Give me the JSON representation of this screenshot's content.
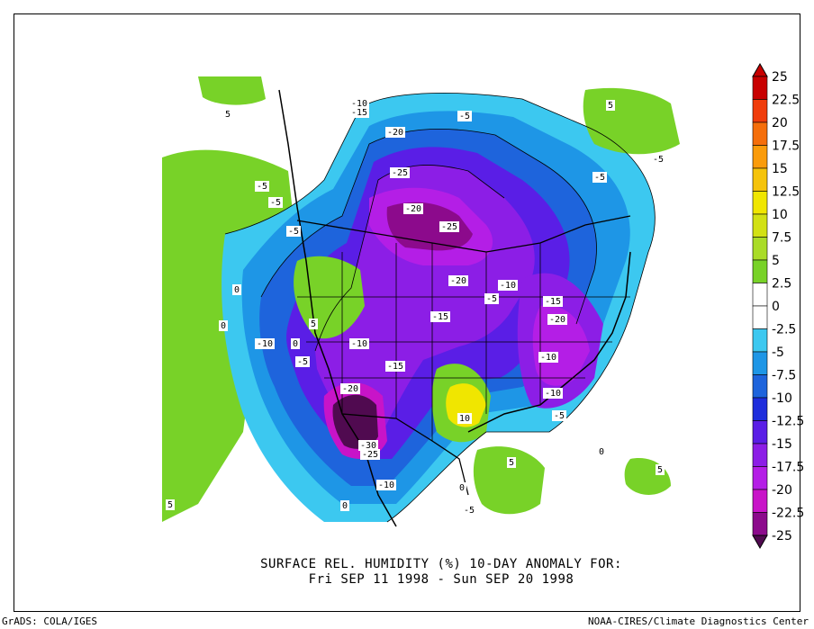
{
  "caption": {
    "line1": "SURFACE REL. HUMIDITY (%)   10-DAY ANOMALY FOR:",
    "line2": "Fri SEP 11 1998 - Sun SEP 20 1998"
  },
  "footer": {
    "left": "GrADS: COLA/IGES",
    "right": "NOAA-CIRES/Climate Diagnostics Center"
  },
  "colorbar": {
    "ticks": [
      "25",
      "22.5",
      "20",
      "17.5",
      "15",
      "12.5",
      "10",
      "7.5",
      "5",
      "2.5",
      "0",
      "-2.5",
      "-5",
      "-7.5",
      "-10",
      "-12.5",
      "-15",
      "-17.5",
      "-20",
      "-22.5",
      "-25"
    ],
    "colors": [
      "#c80000",
      "#f03c0a",
      "#f56e0a",
      "#fa9b0a",
      "#f5c30a",
      "#f0e600",
      "#d2e114",
      "#aadc28",
      "#78d228",
      "#ffffff",
      "#ffffff",
      "#3cc8f0",
      "#1e96e6",
      "#1e64dc",
      "#1e2ddc",
      "#5a1ee6",
      "#8c1ee6",
      "#b41ee6",
      "#c814c8",
      "#8c0a8c",
      "#500a50"
    ]
  },
  "map_labels": [
    "-10",
    "-15",
    "-20",
    "-25",
    "-20",
    "-25",
    "-5",
    "-5",
    "-5",
    "-5",
    "-5",
    "-5",
    "-10",
    "-20",
    "-15",
    "-5",
    "-10",
    "-15",
    "-20",
    "-10",
    "-5",
    "-10",
    "-15",
    "-20",
    "-30",
    "-25",
    "-10",
    "-15",
    "-10",
    "-5",
    "-5",
    "10",
    "5",
    "5",
    "5",
    "5",
    "5",
    "0",
    "0",
    "0",
    "0",
    "0",
    "0",
    "5"
  ]
}
